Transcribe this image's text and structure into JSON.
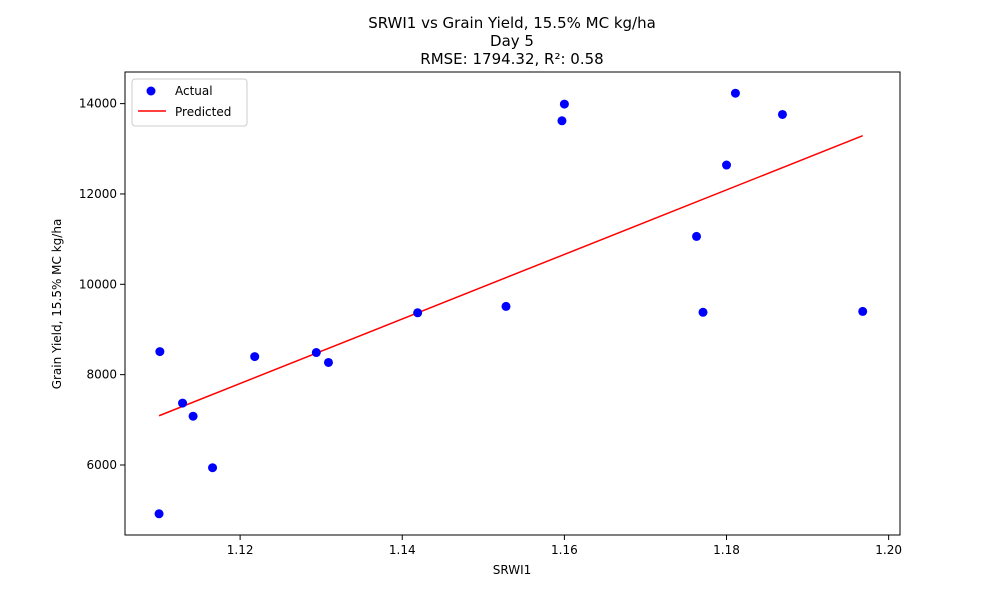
{
  "chart_data": {
    "type": "scatter",
    "title_lines": [
      "SRWI1 vs Grain Yield, 15.5% MC kg/ha",
      "Day 5",
      "RMSE: 1794.32, R²: 0.58"
    ],
    "xlabel": "SRWI1",
    "ylabel": "Grain Yield, 15.5% MC kg/ha",
    "xlim": [
      1.1058,
      1.2014
    ],
    "ylim": [
      4450,
      14700
    ],
    "x_ticks": [
      1.12,
      1.14,
      1.16,
      1.18,
      1.2
    ],
    "x_tick_labels": [
      "1.12",
      "1.14",
      "1.16",
      "1.18",
      "1.20"
    ],
    "y_ticks": [
      6000,
      8000,
      10000,
      12000,
      14000
    ],
    "y_tick_labels": [
      "6000",
      "8000",
      "10000",
      "12000",
      "14000"
    ],
    "grid": false,
    "legend_position": "top-left",
    "series": [
      {
        "name": "Actual",
        "kind": "scatter",
        "color": "#0000ff",
        "points": [
          [
            1.11,
            4920
          ],
          [
            1.1101,
            8510
          ],
          [
            1.1129,
            7370
          ],
          [
            1.1142,
            7080
          ],
          [
            1.1166,
            5940
          ],
          [
            1.1218,
            8400
          ],
          [
            1.1294,
            8490
          ],
          [
            1.1309,
            8270
          ],
          [
            1.1419,
            9370
          ],
          [
            1.1528,
            9510
          ],
          [
            1.1597,
            13620
          ],
          [
            1.16,
            13990
          ],
          [
            1.1763,
            11060
          ],
          [
            1.1771,
            9380
          ],
          [
            1.18,
            12640
          ],
          [
            1.1811,
            14230
          ],
          [
            1.1869,
            13760
          ],
          [
            1.1968,
            9400
          ]
        ]
      },
      {
        "name": "Predicted",
        "kind": "line",
        "color": "#ff0000",
        "points": [
          [
            1.11,
            7090
          ],
          [
            1.1968,
            13290
          ]
        ]
      }
    ]
  }
}
